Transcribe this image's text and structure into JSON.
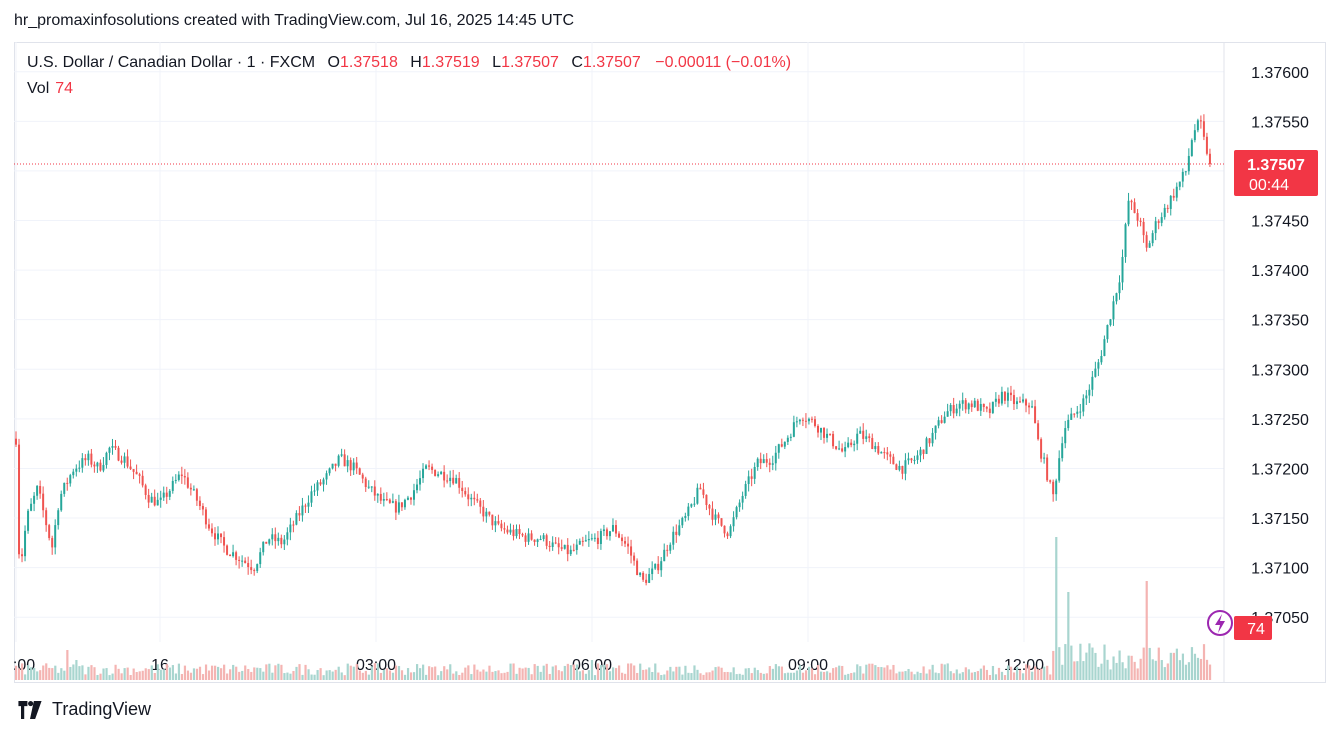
{
  "header": {
    "text": "hr_promaxinfosolutions created with TradingView.com, Jul 16, 2025 14:45 UTC"
  },
  "legend": {
    "symbol": "U.S. Dollar / Canadian Dollar · 1 · FXCM",
    "o_label": "O",
    "o": "1.37518",
    "h_label": "H",
    "h": "1.37519",
    "l_label": "L",
    "l": "1.37507",
    "c_label": "C",
    "c": "1.37507",
    "change": "−0.00011 (−0.01%)",
    "vol_label": "Vol",
    "vol": "74"
  },
  "price_badge": {
    "price": "1.37507",
    "countdown": "00:44"
  },
  "volume_badge": "74",
  "footer": {
    "brand": "TradingView"
  },
  "colors": {
    "up": "#26a69a",
    "down": "#ef5350",
    "badge": "#f23645",
    "vol_up": "#a8d5cf",
    "vol_down": "#f4b4b2",
    "grid": "#f0f3fa",
    "accent_icon": "#9c27b0"
  },
  "chart_data": {
    "type": "candlestick",
    "title": "U.S. Dollar / Canadian Dollar · 1 · FXCM",
    "interval": "1 minute",
    "y_axis": {
      "ticks": [
        "1.37600",
        "1.37550",
        "1.37500",
        "1.37450",
        "1.37400",
        "1.37350",
        "1.37300",
        "1.37250",
        "1.37200",
        "1.37150",
        "1.37100",
        "1.37050"
      ],
      "range": [
        1.37025,
        1.3763
      ]
    },
    "x_axis": {
      "ticks": [
        ":00",
        "16",
        "03:00",
        "06:00",
        "09:00",
        "12:00"
      ],
      "tick_times_h": [
        -2,
        0,
        3,
        6,
        9,
        12
      ]
    },
    "time_range_h": [
      -2.0,
      14.75
    ],
    "last_price": 1.37507,
    "close_path": [
      [
        -2.0,
        1.3723
      ],
      [
        -1.95,
        1.37095
      ],
      [
        -1.85,
        1.3715
      ],
      [
        -1.7,
        1.3718
      ],
      [
        -1.5,
        1.3712
      ],
      [
        -1.4,
        1.3717
      ],
      [
        -1.2,
        1.372
      ],
      [
        -1.0,
        1.3721
      ],
      [
        -0.85,
        1.372
      ],
      [
        -0.7,
        1.3722
      ],
      [
        -0.5,
        1.3721
      ],
      [
        -0.3,
        1.3719
      ],
      [
        -0.15,
        1.3717
      ],
      [
        0.0,
        1.37165
      ],
      [
        0.15,
        1.3718
      ],
      [
        0.3,
        1.37195
      ],
      [
        0.5,
        1.3717
      ],
      [
        0.7,
        1.3714
      ],
      [
        0.9,
        1.3712
      ],
      [
        1.1,
        1.3711
      ],
      [
        1.3,
        1.371
      ],
      [
        1.5,
        1.3713
      ],
      [
        1.7,
        1.37125
      ],
      [
        1.9,
        1.3715
      ],
      [
        2.1,
        1.37175
      ],
      [
        2.3,
        1.3719
      ],
      [
        2.5,
        1.3721
      ],
      [
        2.7,
        1.372
      ],
      [
        2.9,
        1.3718
      ],
      [
        3.1,
        1.37165
      ],
      [
        3.3,
        1.3716
      ],
      [
        3.5,
        1.37175
      ],
      [
        3.7,
        1.372
      ],
      [
        3.9,
        1.37195
      ],
      [
        4.1,
        1.3719
      ],
      [
        4.3,
        1.3717
      ],
      [
        4.5,
        1.37155
      ],
      [
        4.7,
        1.3714
      ],
      [
        4.9,
        1.37135
      ],
      [
        5.1,
        1.3713
      ],
      [
        5.3,
        1.3713
      ],
      [
        5.5,
        1.3712
      ],
      [
        5.7,
        1.37115
      ],
      [
        5.9,
        1.37125
      ],
      [
        6.1,
        1.3713
      ],
      [
        6.3,
        1.3714
      ],
      [
        6.5,
        1.3712
      ],
      [
        6.7,
        1.37085
      ],
      [
        6.9,
        1.371
      ],
      [
        7.1,
        1.3713
      ],
      [
        7.3,
        1.3715
      ],
      [
        7.5,
        1.3718
      ],
      [
        7.7,
        1.3715
      ],
      [
        7.9,
        1.37135
      ],
      [
        8.1,
        1.37175
      ],
      [
        8.3,
        1.37205
      ],
      [
        8.5,
        1.3721
      ],
      [
        8.7,
        1.3723
      ],
      [
        8.9,
        1.37255
      ],
      [
        9.1,
        1.37245
      ],
      [
        9.3,
        1.3723
      ],
      [
        9.5,
        1.37215
      ],
      [
        9.7,
        1.37235
      ],
      [
        9.9,
        1.37225
      ],
      [
        10.1,
        1.3721
      ],
      [
        10.3,
        1.372
      ],
      [
        10.5,
        1.3721
      ],
      [
        10.7,
        1.3723
      ],
      [
        10.9,
        1.37255
      ],
      [
        11.1,
        1.37265
      ],
      [
        11.3,
        1.37265
      ],
      [
        11.5,
        1.37255
      ],
      [
        11.7,
        1.37275
      ],
      [
        11.9,
        1.37265
      ],
      [
        12.1,
        1.37265
      ],
      [
        12.2,
        1.37225
      ],
      [
        12.3,
        1.372
      ],
      [
        12.4,
        1.3717
      ],
      [
        12.55,
        1.3724
      ],
      [
        12.7,
        1.37255
      ],
      [
        12.85,
        1.3727
      ],
      [
        12.95,
        1.3729
      ],
      [
        13.05,
        1.3731
      ],
      [
        13.2,
        1.37355
      ],
      [
        13.35,
        1.374
      ],
      [
        13.45,
        1.3747
      ],
      [
        13.6,
        1.3745
      ],
      [
        13.7,
        1.3742
      ],
      [
        13.85,
        1.3745
      ],
      [
        13.95,
        1.3746
      ],
      [
        14.1,
        1.3748
      ],
      [
        14.25,
        1.375
      ],
      [
        14.35,
        1.3754
      ],
      [
        14.45,
        1.37548
      ],
      [
        14.5,
        1.3753
      ],
      [
        14.55,
        1.37518
      ],
      [
        14.6,
        1.37507
      ]
    ],
    "volume_spikes_h": [
      [
        -1.3,
        30
      ],
      [
        -1.15,
        20
      ],
      [
        6.0,
        20
      ],
      [
        12.45,
        65
      ],
      [
        12.6,
        40
      ],
      [
        13.7,
        45
      ]
    ],
    "volume_typical": 12
  }
}
